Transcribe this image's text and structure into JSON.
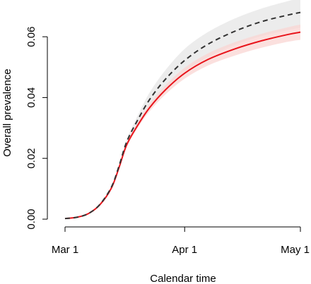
{
  "chart_data": {
    "type": "line",
    "title": "",
    "xlabel": "Calendar time",
    "ylabel": "Overall prevalence",
    "x_domain": [
      "2020-03-01",
      "2020-05-01"
    ],
    "x_ticks": [
      {
        "date": "2020-03-01",
        "label": "Mar 1"
      },
      {
        "date": "2020-04-01",
        "label": "Apr 1"
      },
      {
        "date": "2020-05-01",
        "label": "May 1"
      }
    ],
    "ylim": [
      0,
      0.07
    ],
    "y_ticks": [
      {
        "value": 0.0,
        "label": "0.00"
      },
      {
        "value": 0.02,
        "label": "0.02"
      },
      {
        "value": 0.04,
        "label": "0.04"
      },
      {
        "value": 0.06,
        "label": "0.06"
      }
    ],
    "grid": false,
    "legend": "none",
    "series": [
      {
        "style": "dashed",
        "color": "#333333",
        "band_color": "#e6e6e6",
        "points": [
          {
            "x": "2020-03-01",
            "y": 0.0002,
            "lo": 0.0002,
            "hi": 0.0002
          },
          {
            "x": "2020-03-04",
            "y": 0.0006,
            "lo": 0.0006,
            "hi": 0.0006
          },
          {
            "x": "2020-03-07",
            "y": 0.0018,
            "lo": 0.0018,
            "hi": 0.0018
          },
          {
            "x": "2020-03-10",
            "y": 0.0048,
            "lo": 0.0047,
            "hi": 0.0049
          },
          {
            "x": "2020-03-13",
            "y": 0.0105,
            "lo": 0.0103,
            "hi": 0.0107
          },
          {
            "x": "2020-03-15",
            "y": 0.0175,
            "lo": 0.0172,
            "hi": 0.0178
          },
          {
            "x": "2020-03-17",
            "y": 0.0255,
            "lo": 0.0248,
            "hi": 0.0262
          },
          {
            "x": "2020-03-20",
            "y": 0.033,
            "lo": 0.0315,
            "hi": 0.0345
          },
          {
            "x": "2020-03-23",
            "y": 0.0395,
            "lo": 0.0372,
            "hi": 0.0418
          },
          {
            "x": "2020-03-27",
            "y": 0.046,
            "lo": 0.0428,
            "hi": 0.049
          },
          {
            "x": "2020-04-01",
            "y": 0.0522,
            "lo": 0.0485,
            "hi": 0.056
          },
          {
            "x": "2020-04-07",
            "y": 0.0575,
            "lo": 0.0533,
            "hi": 0.0615
          },
          {
            "x": "2020-04-14",
            "y": 0.0618,
            "lo": 0.0573,
            "hi": 0.066
          },
          {
            "x": "2020-04-21",
            "y": 0.065,
            "lo": 0.0602,
            "hi": 0.0693
          },
          {
            "x": "2020-04-28",
            "y": 0.0672,
            "lo": 0.0622,
            "hi": 0.0718
          },
          {
            "x": "2020-05-01",
            "y": 0.068,
            "lo": 0.063,
            "hi": 0.0726
          }
        ]
      },
      {
        "style": "solid",
        "color": "#e8141b",
        "band_color": "#f9d6d3",
        "points": [
          {
            "x": "2020-03-01",
            "y": 0.0002,
            "lo": 0.0002,
            "hi": 0.0002
          },
          {
            "x": "2020-03-04",
            "y": 0.0006,
            "lo": 0.0006,
            "hi": 0.0006
          },
          {
            "x": "2020-03-07",
            "y": 0.0018,
            "lo": 0.0018,
            "hi": 0.0018
          },
          {
            "x": "2020-03-10",
            "y": 0.0047,
            "lo": 0.0046,
            "hi": 0.0048
          },
          {
            "x": "2020-03-13",
            "y": 0.0102,
            "lo": 0.01,
            "hi": 0.0104
          },
          {
            "x": "2020-03-15",
            "y": 0.017,
            "lo": 0.0167,
            "hi": 0.0173
          },
          {
            "x": "2020-03-17",
            "y": 0.0245,
            "lo": 0.0239,
            "hi": 0.0251
          },
          {
            "x": "2020-03-20",
            "y": 0.0312,
            "lo": 0.0303,
            "hi": 0.0321
          },
          {
            "x": "2020-03-23",
            "y": 0.0368,
            "lo": 0.0356,
            "hi": 0.038
          },
          {
            "x": "2020-03-27",
            "y": 0.0425,
            "lo": 0.041,
            "hi": 0.044
          },
          {
            "x": "2020-04-01",
            "y": 0.048,
            "lo": 0.0462,
            "hi": 0.0498
          },
          {
            "x": "2020-04-07",
            "y": 0.0525,
            "lo": 0.0505,
            "hi": 0.0545
          },
          {
            "x": "2020-04-14",
            "y": 0.056,
            "lo": 0.0538,
            "hi": 0.0582
          },
          {
            "x": "2020-04-21",
            "y": 0.0587,
            "lo": 0.0564,
            "hi": 0.061
          },
          {
            "x": "2020-04-28",
            "y": 0.0608,
            "lo": 0.0584,
            "hi": 0.0632
          },
          {
            "x": "2020-05-01",
            "y": 0.0615,
            "lo": 0.059,
            "hi": 0.064
          }
        ]
      }
    ]
  }
}
